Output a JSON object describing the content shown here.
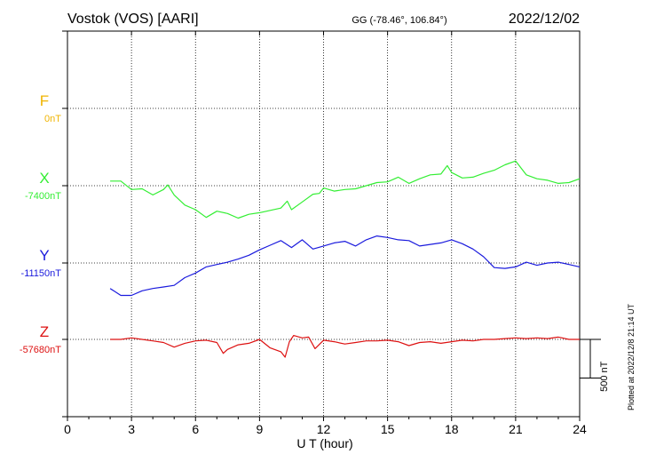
{
  "header": {
    "station": "Vostok (VOS)  [AARI]",
    "coords": "GG (-78.46°, 106.84°)",
    "date": "2022/12/02"
  },
  "side_note": "Plotted at 2022/12/8 21:14 UT",
  "chart_data": {
    "type": "line",
    "xlabel": "U T (hour)",
    "xlim": [
      0,
      24
    ],
    "xticks": [
      "0",
      "3",
      "6",
      "9",
      "12",
      "15",
      "18",
      "21",
      "24"
    ],
    "scale_bar": {
      "label": "500 nT",
      "value_nT": 500
    },
    "series": [
      {
        "name": "F",
        "baseline_label": "0nT",
        "color": "#f0b400",
        "x": [],
        "y": []
      },
      {
        "name": "X",
        "baseline_label": "-7400nT",
        "color": "#33ee33",
        "x": [
          2.0,
          2.5,
          3.0,
          3.5,
          4.0,
          4.5,
          4.7,
          5.0,
          5.5,
          6.0,
          6.5,
          7.0,
          7.5,
          8.0,
          8.5,
          9.0,
          9.5,
          10.0,
          10.3,
          10.5,
          11.0,
          11.5,
          11.8,
          12.0,
          12.5,
          13.0,
          13.5,
          14.0,
          14.5,
          15.0,
          15.5,
          16.0,
          16.5,
          17.0,
          17.5,
          17.8,
          18.0,
          18.5,
          19.0,
          19.5,
          20.0,
          20.5,
          21.0,
          21.5,
          22.0,
          22.5,
          23.0,
          23.5,
          24.0
        ],
        "y": [
          -7340,
          -7340,
          -7450,
          -7440,
          -7520,
          -7450,
          -7390,
          -7520,
          -7650,
          -7710,
          -7810,
          -7730,
          -7760,
          -7820,
          -7770,
          -7750,
          -7720,
          -7690,
          -7600,
          -7710,
          -7610,
          -7510,
          -7500,
          -7430,
          -7470,
          -7450,
          -7440,
          -7400,
          -7360,
          -7350,
          -7290,
          -7370,
          -7310,
          -7260,
          -7250,
          -7140,
          -7230,
          -7300,
          -7290,
          -7240,
          -7200,
          -7130,
          -7080,
          -7260,
          -7310,
          -7330,
          -7370,
          -7360,
          -7310
        ]
      },
      {
        "name": "Y",
        "baseline_label": "-11150nT",
        "color": "#1a1add",
        "x": [
          2.0,
          2.5,
          3.0,
          3.5,
          4.0,
          4.5,
          5.0,
          5.5,
          6.0,
          6.5,
          7.0,
          7.5,
          8.0,
          8.5,
          9.0,
          9.5,
          10.0,
          10.5,
          11.0,
          11.5,
          12.0,
          12.5,
          13.0,
          13.5,
          14.0,
          14.5,
          15.0,
          15.5,
          16.0,
          16.5,
          17.0,
          17.5,
          18.0,
          18.5,
          19.0,
          19.5,
          20.0,
          20.5,
          21.0,
          21.5,
          22.0,
          22.5,
          23.0,
          23.5,
          24.0
        ],
        "y": [
          -11480,
          -11570,
          -11570,
          -11510,
          -11480,
          -11460,
          -11440,
          -11340,
          -11280,
          -11200,
          -11170,
          -11140,
          -11100,
          -11050,
          -10980,
          -10920,
          -10860,
          -10950,
          -10850,
          -10970,
          -10930,
          -10890,
          -10870,
          -10930,
          -10850,
          -10800,
          -10820,
          -10850,
          -10860,
          -10930,
          -10910,
          -10890,
          -10850,
          -10900,
          -10970,
          -11070,
          -11210,
          -11220,
          -11200,
          -11140,
          -11180,
          -11150,
          -11140,
          -11170,
          -11200
        ]
      },
      {
        "name": "Z",
        "baseline_label": "-57680nT",
        "color": "#dd1111",
        "x": [
          2.0,
          2.5,
          3.0,
          3.5,
          4.0,
          4.5,
          5.0,
          5.5,
          6.0,
          6.5,
          7.0,
          7.3,
          7.5,
          8.0,
          8.5,
          9.0,
          9.5,
          10.0,
          10.2,
          10.4,
          10.6,
          11.0,
          11.3,
          11.6,
          12.0,
          12.5,
          13.0,
          13.5,
          14.0,
          14.5,
          15.0,
          15.5,
          16.0,
          16.5,
          17.0,
          17.5,
          18.0,
          18.5,
          19.0,
          19.5,
          20.0,
          20.5,
          21.0,
          21.5,
          22.0,
          22.5,
          23.0,
          23.5,
          24.0
        ],
        "y": [
          -57680,
          -57680,
          -57660,
          -57680,
          -57700,
          -57720,
          -57780,
          -57730,
          -57700,
          -57690,
          -57720,
          -57860,
          -57810,
          -57750,
          -57730,
          -57680,
          -57790,
          -57840,
          -57910,
          -57710,
          -57630,
          -57660,
          -57650,
          -57800,
          -57690,
          -57710,
          -57740,
          -57720,
          -57700,
          -57700,
          -57690,
          -57710,
          -57760,
          -57720,
          -57710,
          -57730,
          -57710,
          -57690,
          -57700,
          -57680,
          -57680,
          -57670,
          -57660,
          -57670,
          -57660,
          -57670,
          -57650,
          -57680,
          -57680
        ]
      }
    ]
  }
}
